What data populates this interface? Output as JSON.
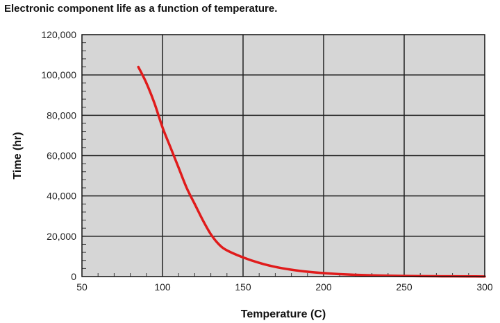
{
  "chart_data": {
    "type": "line",
    "title": "Electronic component life as a function of temperature.",
    "xlabel": "Temperature (C)",
    "ylabel": "Time (hr)",
    "xlim": [
      50,
      300
    ],
    "ylim": [
      0,
      120000
    ],
    "x_ticks": [
      "50",
      "100",
      "150",
      "200",
      "250",
      "300"
    ],
    "y_ticks": [
      "0",
      "20,000",
      "40,000",
      "60,000",
      "80,000",
      "100,000",
      "120,000"
    ],
    "grid": true,
    "background_color": "#d6d6d6",
    "series": [
      {
        "color": "#e01b1b",
        "x": [
          85,
          90,
          95,
          100,
          105,
          110,
          115,
          120,
          125,
          130,
          135,
          140,
          150,
          160,
          170,
          180,
          190,
          200,
          210,
          220,
          230,
          240,
          250,
          260,
          270,
          280,
          290,
          300
        ],
        "y": [
          104000,
          96000,
          86000,
          74000,
          64000,
          54000,
          44000,
          36000,
          28000,
          21000,
          16000,
          13000,
          9500,
          6800,
          4800,
          3400,
          2400,
          1700,
          1200,
          850,
          600,
          420,
          300,
          220,
          160,
          110,
          80,
          60
        ]
      }
    ]
  }
}
